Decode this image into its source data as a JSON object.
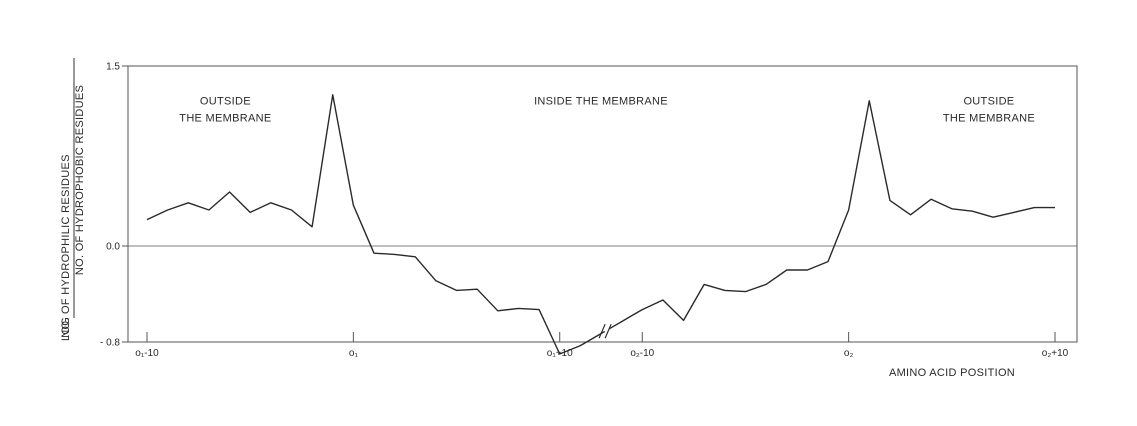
{
  "chart_data": {
    "type": "line",
    "ylabel": {
      "prefix": "LOG",
      "numerator": "NO. OF HYDROPHILIC RESIDUES",
      "denominator": "NO. OF HYDROPHOBIC RESIDUES"
    },
    "xlabel": "AMINO ACID POSITION",
    "ylim": [
      -0.8,
      1.5
    ],
    "y_ticks": [
      {
        "value": 1.5,
        "label": "1.5"
      },
      {
        "value": 0.0,
        "label": "0.0"
      },
      {
        "value": -0.8,
        "label": "- 0.8"
      }
    ],
    "baseline": 0.0,
    "grid": false,
    "x_axis_break": true,
    "x_ticks": [
      {
        "x": 0,
        "label": "o₁-10"
      },
      {
        "x": 10,
        "label": "o₁"
      },
      {
        "x": 20,
        "label": "o₁+10"
      },
      {
        "x": 24,
        "label": "o₂-10"
      },
      {
        "x": 34,
        "label": "o₂"
      },
      {
        "x": 44,
        "label": "o₂+10"
      }
    ],
    "annotations": [
      {
        "id": "outside-left",
        "lines": [
          "OUTSIDE",
          "THE MEMBRANE"
        ],
        "x": 3.8,
        "y": 1.18
      },
      {
        "id": "inside",
        "lines": [
          "INSIDE THE MEMBRANE"
        ],
        "x": 22.0,
        "y": 1.18
      },
      {
        "id": "outside-right",
        "lines": [
          "OUTSIDE",
          "THE MEMBRANE"
        ],
        "x": 40.8,
        "y": 1.18
      }
    ],
    "series": [
      {
        "points": [
          [
            0,
            0.22
          ],
          [
            1,
            0.3
          ],
          [
            2,
            0.36
          ],
          [
            3,
            0.3
          ],
          [
            4,
            0.45
          ],
          [
            5,
            0.28
          ],
          [
            6,
            0.36
          ],
          [
            7,
            0.3
          ],
          [
            8,
            0.16
          ],
          [
            9,
            1.26
          ],
          [
            10,
            0.34
          ],
          [
            11,
            -0.06
          ],
          [
            12,
            -0.07
          ],
          [
            13,
            -0.09
          ],
          [
            14,
            -0.29
          ],
          [
            15,
            -0.37
          ],
          [
            16,
            -0.36
          ],
          [
            17,
            -0.54
          ],
          [
            18,
            -0.52
          ],
          [
            19,
            -0.53
          ],
          [
            20,
            -0.9
          ],
          [
            21,
            -0.83
          ],
          [
            22,
            -0.73
          ],
          [
            23,
            -0.63
          ],
          [
            24,
            -0.53
          ],
          [
            25,
            -0.45
          ],
          [
            26,
            -0.62
          ],
          [
            27,
            -0.32
          ],
          [
            28,
            -0.37
          ],
          [
            29,
            -0.38
          ],
          [
            30,
            -0.32
          ],
          [
            31,
            -0.2
          ],
          [
            32,
            -0.2
          ],
          [
            33,
            -0.13
          ],
          [
            34,
            0.3
          ],
          [
            35,
            1.21
          ],
          [
            36,
            0.38
          ],
          [
            37,
            0.26
          ],
          [
            38,
            0.39
          ],
          [
            39,
            0.31
          ],
          [
            40,
            0.29
          ],
          [
            41,
            0.24
          ],
          [
            42,
            0.28
          ],
          [
            43,
            0.32
          ],
          [
            44,
            0.32
          ]
        ]
      }
    ]
  }
}
